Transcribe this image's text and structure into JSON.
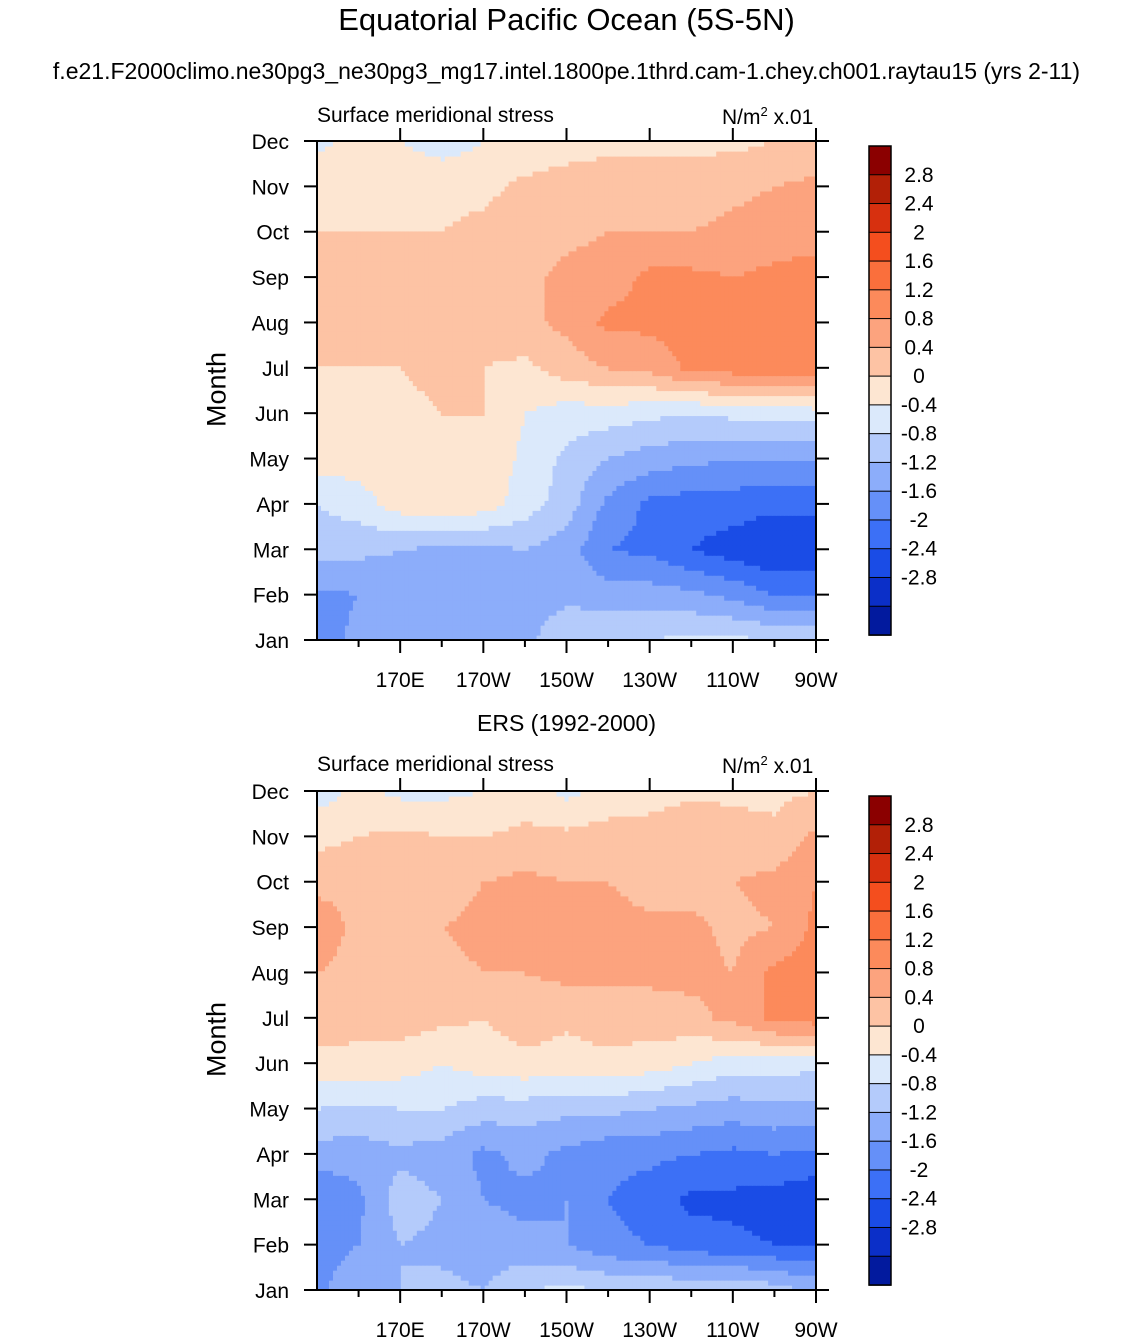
{
  "figure": {
    "title": "Equatorial Pacific Ocean (5S-5N)",
    "subtitle": "f.e21.F2000climo.ne30pg3_ne30pg3_mg17.intel.1800pe.1thrd.cam-1.chey.ch001.raytau15 (yrs 2-11)"
  },
  "colorbar": {
    "levels": [
      "2.8",
      "2.4",
      "2",
      "1.6",
      "1.2",
      "0.8",
      "0.4",
      "0",
      "-0.4",
      "-0.8",
      "-1.2",
      "-1.6",
      "-2",
      "-2.4",
      "-2.8"
    ],
    "colors": [
      "#8b0000",
      "#b22007",
      "#d7300f",
      "#f44e1e",
      "#fa6f3c",
      "#fc8a5b",
      "#fca37e",
      "#fdc3a4",
      "#fde6d2",
      "#dbe9fb",
      "#b4cbfb",
      "#8cadfa",
      "#6590f8",
      "#3c70f6",
      "#1a4ce6",
      "#0b2fc8",
      "#021a9e"
    ]
  },
  "chart_data": [
    {
      "type": "heatmap",
      "title": "",
      "left_label": "Surface meridional stress",
      "units_label": "N/m",
      "units_exp": "2",
      "units_suffix": " x.01",
      "ylabel": "Month",
      "xlabel": "",
      "x_ticks": [
        "170E",
        "170W",
        "150W",
        "130W",
        "110W",
        "90W"
      ],
      "y_ticks": [
        "Jan",
        "Feb",
        "Mar",
        "Apr",
        "May",
        "Jun",
        "Jul",
        "Aug",
        "Sep",
        "Oct",
        "Nov",
        "Dec"
      ],
      "x": [
        "150E",
        "160E",
        "170E",
        "180",
        "170W",
        "160W",
        "150W",
        "140W",
        "130W",
        "120W",
        "110W",
        "100W",
        "90W"
      ],
      "z": [
        [
          -1.4,
          -1.1,
          -1.0,
          -1.0,
          -0.9,
          -0.9,
          -0.5,
          -0.4,
          -0.4,
          -0.3,
          -0.3,
          -0.4,
          -0.5
        ],
        [
          -1.3,
          -1.2,
          -1.0,
          -1.0,
          -1.0,
          -1.0,
          -0.9,
          -1.0,
          -1.0,
          -1.1,
          -1.3,
          -1.6,
          -1.6
        ],
        [
          -0.6,
          -0.7,
          -0.8,
          -0.9,
          -0.9,
          -0.8,
          -1.0,
          -1.6,
          -1.7,
          -2.0,
          -2.2,
          -2.4,
          -2.3
        ],
        [
          -0.4,
          -0.2,
          0.2,
          0.3,
          0.2,
          -0.2,
          -0.6,
          -1.3,
          -1.7,
          -1.8,
          -1.8,
          -1.9,
          -1.9
        ],
        [
          0.2,
          0.2,
          0.3,
          0.3,
          0.3,
          -0.1,
          -0.5,
          -0.8,
          -1.0,
          -1.1,
          -1.2,
          -1.2,
          -1.2
        ],
        [
          0.2,
          0.4,
          0.3,
          0.4,
          0.4,
          0.0,
          -0.2,
          -0.2,
          -0.3,
          -0.4,
          -0.3,
          -0.3,
          -0.2
        ],
        [
          0.4,
          0.4,
          0.4,
          0.5,
          0.4,
          0.3,
          0.6,
          0.8,
          0.9,
          1.3,
          1.4,
          1.5,
          1.6
        ],
        [
          0.4,
          0.5,
          0.6,
          0.7,
          0.6,
          0.7,
          0.9,
          1.3,
          1.3,
          1.4,
          1.3,
          1.4,
          1.4
        ],
        [
          0.4,
          0.6,
          0.5,
          0.6,
          0.6,
          0.7,
          0.9,
          1.0,
          1.3,
          1.3,
          1.2,
          1.3,
          1.4
        ],
        [
          0.4,
          0.4,
          0.4,
          0.4,
          0.5,
          0.6,
          0.7,
          0.8,
          0.8,
          0.8,
          0.9,
          1.0,
          1.0
        ],
        [
          0.3,
          0.3,
          0.3,
          0.3,
          0.3,
          0.5,
          0.6,
          0.6,
          0.6,
          0.6,
          0.7,
          0.8,
          0.9
        ],
        [
          -0.1,
          0.1,
          0.0,
          -0.2,
          0.0,
          0.1,
          0.2,
          0.3,
          0.3,
          0.3,
          0.3,
          0.4,
          0.5
        ]
      ]
    },
    {
      "type": "heatmap",
      "title": "ERS (1992-2000)",
      "left_label": "Surface meridional stress",
      "units_label": "N/m",
      "units_exp": "2",
      "units_suffix": " x.01",
      "ylabel": "Month",
      "xlabel": "",
      "x_ticks": [
        "170E",
        "170W",
        "150W",
        "130W",
        "110W",
        "90W"
      ],
      "y_ticks": [
        "Jan",
        "Feb",
        "Mar",
        "Apr",
        "May",
        "Jun",
        "Jul",
        "Aug",
        "Sep",
        "Oct",
        "Nov",
        "Dec"
      ],
      "x": [
        "150E",
        "160E",
        "170E",
        "180",
        "170W",
        "160W",
        "150W",
        "140W",
        "130W",
        "120W",
        "110W",
        "100W",
        "90W"
      ],
      "z": [
        [
          -1.3,
          -0.9,
          -0.8,
          -0.7,
          -0.8,
          -0.4,
          -0.3,
          -0.4,
          -0.4,
          -0.5,
          -0.4,
          -0.6,
          -0.9
        ],
        [
          -1.4,
          -1.2,
          -0.8,
          -0.9,
          -1.0,
          -1.1,
          -1.2,
          -1.5,
          -1.6,
          -1.8,
          -1.9,
          -2.0,
          -2.0
        ],
        [
          -1.6,
          -1.3,
          -0.6,
          -0.8,
          -1.2,
          -1.3,
          -1.2,
          -1.6,
          -1.8,
          -2.1,
          -2.1,
          -2.2,
          -2.3
        ],
        [
          -1.0,
          -1.0,
          -0.9,
          -1.0,
          -1.3,
          -1.1,
          -1.3,
          -1.5,
          -1.5,
          -1.6,
          -1.7,
          -1.6,
          -1.7
        ],
        [
          -0.4,
          -0.5,
          -0.4,
          -0.4,
          -0.6,
          -0.6,
          -0.7,
          -0.7,
          -0.8,
          -0.9,
          -1.0,
          -0.9,
          -0.9
        ],
        [
          0.3,
          0.3,
          0.2,
          0.0,
          0.2,
          0.3,
          0.2,
          0.3,
          0.2,
          0.0,
          -0.2,
          -0.2,
          -0.3
        ],
        [
          0.6,
          0.5,
          0.6,
          0.5,
          0.4,
          0.6,
          0.5,
          0.6,
          0.6,
          0.7,
          0.9,
          1.3,
          1.4
        ],
        [
          0.8,
          0.6,
          0.6,
          0.7,
          0.8,
          0.8,
          0.9,
          0.9,
          0.9,
          0.9,
          0.8,
          1.3,
          1.4
        ],
        [
          1.2,
          0.6,
          0.5,
          0.8,
          0.9,
          0.8,
          0.9,
          1.0,
          0.9,
          0.9,
          0.7,
          0.8,
          1.3
        ],
        [
          0.6,
          0.7,
          0.6,
          0.6,
          0.8,
          0.9,
          0.8,
          0.8,
          0.6,
          0.6,
          0.8,
          0.9,
          1.2
        ],
        [
          0.3,
          0.4,
          0.5,
          0.4,
          0.4,
          0.5,
          0.5,
          0.6,
          0.6,
          0.8,
          0.6,
          0.5,
          0.9
        ],
        [
          -0.2,
          0.1,
          -0.1,
          -0.1,
          0.0,
          0.2,
          -0.1,
          0.1,
          0.2,
          0.3,
          0.3,
          0.3,
          0.4
        ]
      ]
    }
  ]
}
